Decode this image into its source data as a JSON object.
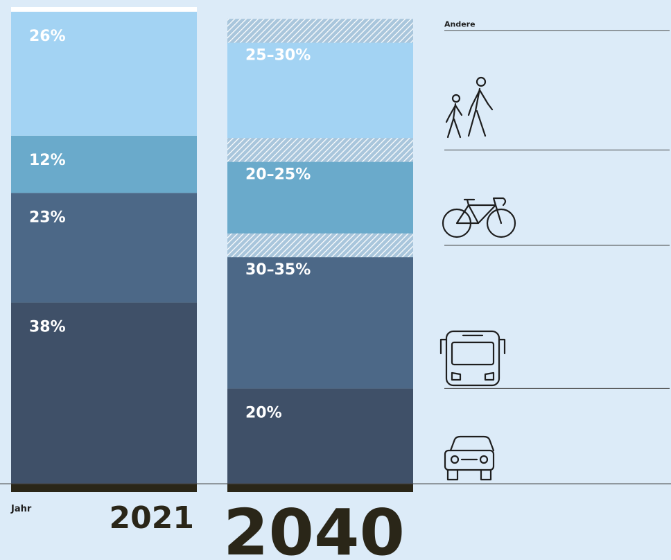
{
  "chart_data": {
    "type": "stacked_bar",
    "categories": [
      "2021",
      "2040"
    ],
    "x_label": "Jahr",
    "series": [
      {
        "color": "#3f5068",
        "values": [
          38,
          20
        ],
        "value_labels": [
          "38%",
          "20%"
        ]
      },
      {
        "color": "#4c6887",
        "values": [
          23,
          30
        ],
        "high": [
          null,
          35
        ],
        "value_labels": [
          "23%",
          "30–35%"
        ]
      },
      {
        "color": "#6aaacb",
        "values": [
          12,
          20
        ],
        "high": [
          null,
          25
        ],
        "value_labels": [
          "12%",
          "20–25%"
        ]
      },
      {
        "color": "#a3d3f3",
        "values": [
          26,
          25
        ],
        "high": [
          null,
          30
        ],
        "value_labels": [
          "26%",
          "25–30%"
        ]
      },
      {
        "name": "Andere",
        "color": "#ffffff",
        "values": [
          1,
          1
        ]
      }
    ],
    "ylim": [
      0,
      100
    ]
  }
}
